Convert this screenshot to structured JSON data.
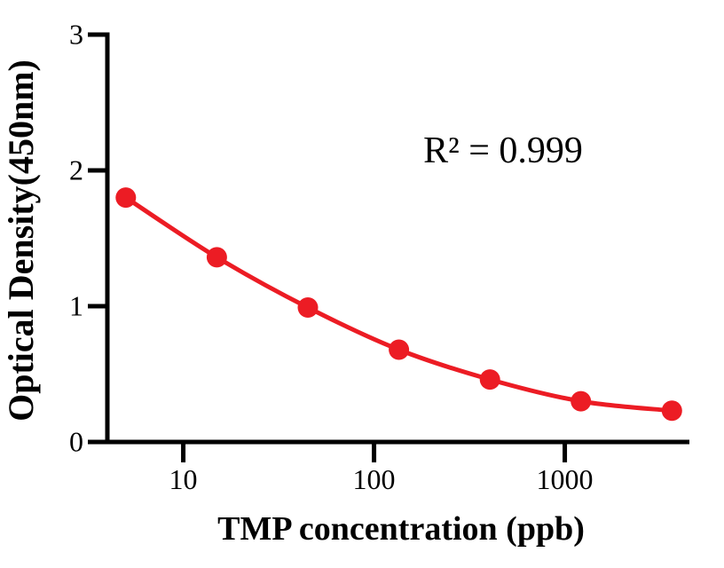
{
  "figure": {
    "background": "#ffffff"
  },
  "chart_data": {
    "type": "line",
    "title": "",
    "xlabel": "TMP concentration (ppb)",
    "ylabel": "Optical Density(450nm)",
    "annotation": "R² = 0.999",
    "x_scale": "log",
    "x": [
      5,
      15,
      45,
      135,
      405,
      1215,
      3645
    ],
    "y": [
      1.8,
      1.36,
      0.99,
      0.68,
      0.46,
      0.3,
      0.23
    ],
    "x_ticks": [
      10,
      100,
      1000
    ],
    "x_tick_labels": [
      "10",
      "100",
      "1000"
    ],
    "y_ticks": [
      0,
      1,
      2,
      3
    ],
    "y_tick_labels": [
      "0",
      "1",
      "2",
      "3"
    ],
    "xlim": [
      4,
      4500
    ],
    "ylim": [
      0,
      3
    ],
    "grid": false,
    "legend": "none",
    "line_color": "#EC1C24",
    "marker_color": "#EC1C24",
    "marker_radius": 11.5,
    "axis_color": "#000000"
  }
}
